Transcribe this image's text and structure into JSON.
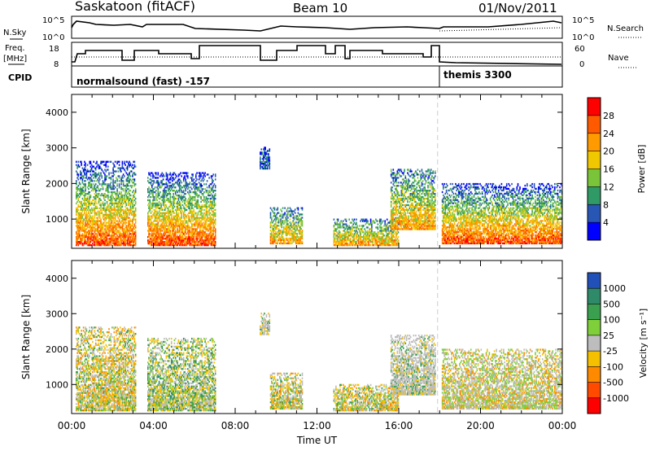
{
  "header": {
    "station": "Saskatoon (fitACF)",
    "beam": "Beam 10",
    "date": "01/Nov/2011"
  },
  "top_panels": {
    "nsky_label": "N.Sky",
    "nsky_ticks": [
      "10^5",
      "10^0"
    ],
    "nsearch_label": "N.Search",
    "freq_label_1": "Freq.",
    "freq_label_2": "[MHz]",
    "freq_ticks": [
      "18",
      "8"
    ],
    "nave_label": "Nave",
    "nave_ticks": [
      "60",
      "0"
    ],
    "cpid_label": "CPID",
    "cpid_1": "normalsound (fast) -157",
    "cpid_2": "themis 3300"
  },
  "chart_data": [
    {
      "type": "heatmap",
      "panel": "power",
      "ylabel": "Slant Range [km]",
      "yticks": [
        "4000",
        "3000",
        "2000",
        "1000"
      ],
      "ylim": [
        180,
        4500
      ],
      "xlabel": "Time UT",
      "xticks": [
        "00:00",
        "04:00",
        "08:00",
        "12:00",
        "16:00",
        "20:00",
        "00:00"
      ],
      "xlim_hours": [
        0,
        24
      ],
      "colorbar_label": "Power [dB]",
      "colorbar_ticks": [
        "28",
        "24",
        "20",
        "16",
        "12",
        "8",
        "4"
      ],
      "colorbar_colors": [
        "#ff0000",
        "#ff5a00",
        "#ff9a00",
        "#f0c800",
        "#7ac43a",
        "#2f9a66",
        "#2856b4",
        "#0000ff"
      ],
      "echo_regions": [
        {
          "t0": 0.2,
          "t1": 3.1,
          "r0": 250,
          "r1": 2600,
          "level": "high"
        },
        {
          "t0": 3.7,
          "t1": 7.0,
          "r0": 250,
          "r1": 2300,
          "level": "high"
        },
        {
          "t0": 9.2,
          "t1": 9.7,
          "r0": 2400,
          "r1": 3000,
          "level": "low"
        },
        {
          "t0": 9.7,
          "t1": 11.3,
          "r0": 300,
          "r1": 1300,
          "level": "mid"
        },
        {
          "t0": 12.8,
          "t1": 16.0,
          "r0": 250,
          "r1": 1000,
          "level": "mid"
        },
        {
          "t0": 15.6,
          "t1": 17.8,
          "r0": 700,
          "r1": 2400,
          "level": "mid"
        },
        {
          "t0": 18.1,
          "t1": 24.0,
          "r0": 300,
          "r1": 2000,
          "level": "high"
        }
      ]
    },
    {
      "type": "heatmap",
      "panel": "velocity",
      "ylabel": "Slant Range [km]",
      "yticks": [
        "4000",
        "3000",
        "2000",
        "1000"
      ],
      "ylim": [
        180,
        4500
      ],
      "xlabel": "Time UT",
      "xticks": [
        "00:00",
        "04:00",
        "08:00",
        "12:00",
        "16:00",
        "20:00",
        "00:00"
      ],
      "xlim_hours": [
        0,
        24
      ],
      "colorbar_label": "Velocity [m s⁻¹]",
      "colorbar_ticks": [
        "1000",
        "500",
        "100",
        "25",
        "-25",
        "-100",
        "-500",
        "-1000"
      ],
      "colorbar_colors": [
        "#2050b8",
        "#2f8a6a",
        "#3aa050",
        "#7ecf3a",
        "#bdbdbd",
        "#f5c000",
        "#ff8a00",
        "#ff4a00",
        "#ff0000"
      ],
      "echo_regions": [
        {
          "t0": 0.2,
          "t1": 3.1,
          "r0": 250,
          "r1": 2600,
          "level": "neg"
        },
        {
          "t0": 3.7,
          "t1": 7.0,
          "r0": 250,
          "r1": 2300,
          "level": "mix"
        },
        {
          "t0": 9.2,
          "t1": 9.7,
          "r0": 2400,
          "r1": 3000,
          "level": "zero"
        },
        {
          "t0": 9.7,
          "t1": 11.3,
          "r0": 300,
          "r1": 1300,
          "level": "neg"
        },
        {
          "t0": 12.8,
          "t1": 16.0,
          "r0": 250,
          "r1": 1000,
          "level": "neg"
        },
        {
          "t0": 15.6,
          "t1": 17.8,
          "r0": 700,
          "r1": 2400,
          "level": "zero"
        },
        {
          "t0": 18.1,
          "t1": 24.0,
          "r0": 300,
          "r1": 2000,
          "level": "zeropos"
        }
      ]
    }
  ]
}
